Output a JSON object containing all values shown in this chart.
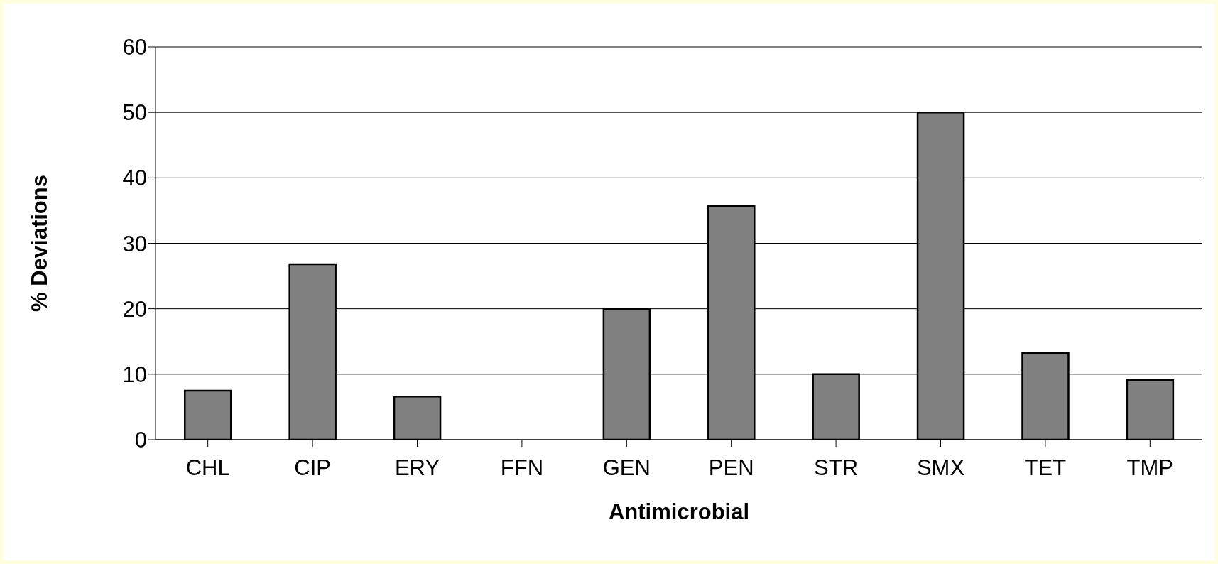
{
  "chart_data": {
    "type": "bar",
    "xlabel": "Antimicrobial",
    "ylabel": "% Deviations",
    "categories": [
      "CHL",
      "CIP",
      "ERY",
      "FFN",
      "GEN",
      "PEN",
      "STR",
      "SMX",
      "TET",
      "TMP"
    ],
    "values": [
      7.5,
      26.8,
      6.6,
      0,
      20,
      35.7,
      10,
      50,
      13.2,
      9.1
    ],
    "color": "#808080",
    "ylim": [
      0,
      60
    ],
    "yticks": [
      0,
      10,
      20,
      30,
      40,
      50,
      60
    ],
    "grid": "y"
  }
}
